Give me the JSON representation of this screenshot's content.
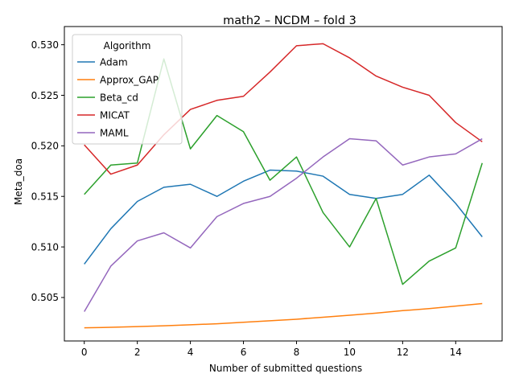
{
  "chart_data": {
    "type": "line",
    "title": "math2 – NCDM – fold 3",
    "xlabel": "Number of submitted questions",
    "ylabel": "Meta_doa",
    "xlim": [
      -0.75,
      15.75
    ],
    "ylim": [
      0.5007,
      0.5318
    ],
    "xticks": [
      0,
      2,
      4,
      6,
      8,
      10,
      12,
      14
    ],
    "yticks": [
      0.505,
      0.51,
      0.515,
      0.52,
      0.525,
      0.53
    ],
    "ytick_labels": [
      "0.505",
      "0.510",
      "0.515",
      "0.520",
      "0.525",
      "0.530"
    ],
    "grid": false,
    "legend": {
      "title": "Algorithm",
      "placement": "top-left"
    },
    "x": [
      0,
      1,
      2,
      3,
      4,
      5,
      6,
      7,
      8,
      9,
      10,
      11,
      12,
      13,
      14,
      15
    ],
    "series": [
      {
        "name": "Adam",
        "color": "#1f77b4",
        "values": [
          0.5083,
          0.5118,
          0.5145,
          0.5159,
          0.5162,
          0.515,
          0.5165,
          0.5176,
          0.5175,
          0.517,
          0.5152,
          0.5148,
          0.5152,
          0.5171,
          0.5143,
          0.511
        ]
      },
      {
        "name": "Approx_GAP",
        "color": "#ff7f0e",
        "values": [
          0.502,
          0.50205,
          0.50212,
          0.5022,
          0.5023,
          0.5024,
          0.50255,
          0.5027,
          0.50285,
          0.50305,
          0.50325,
          0.50345,
          0.5037,
          0.5039,
          0.50415,
          0.5044
        ]
      },
      {
        "name": "Beta_cd",
        "color": "#2ca02c",
        "values": [
          0.5152,
          0.5181,
          0.5183,
          0.5286,
          0.5197,
          0.523,
          0.5214,
          0.5166,
          0.5189,
          0.5134,
          0.51,
          0.5148,
          0.5063,
          0.5086,
          0.5099,
          0.5183
        ]
      },
      {
        "name": "MICAT",
        "color": "#d62728",
        "values": [
          0.5201,
          0.5172,
          0.5181,
          0.5211,
          0.5236,
          0.5245,
          0.5249,
          0.5273,
          0.5299,
          0.5301,
          0.5287,
          0.5269,
          0.5258,
          0.525,
          0.5223,
          0.5204
        ]
      },
      {
        "name": "MAML",
        "color": "#9467bd",
        "values": [
          0.5036,
          0.5081,
          0.5106,
          0.5114,
          0.5099,
          0.513,
          0.5143,
          0.515,
          0.5168,
          0.5189,
          0.5207,
          0.5205,
          0.5181,
          0.5189,
          0.5192,
          0.5207
        ]
      }
    ]
  }
}
